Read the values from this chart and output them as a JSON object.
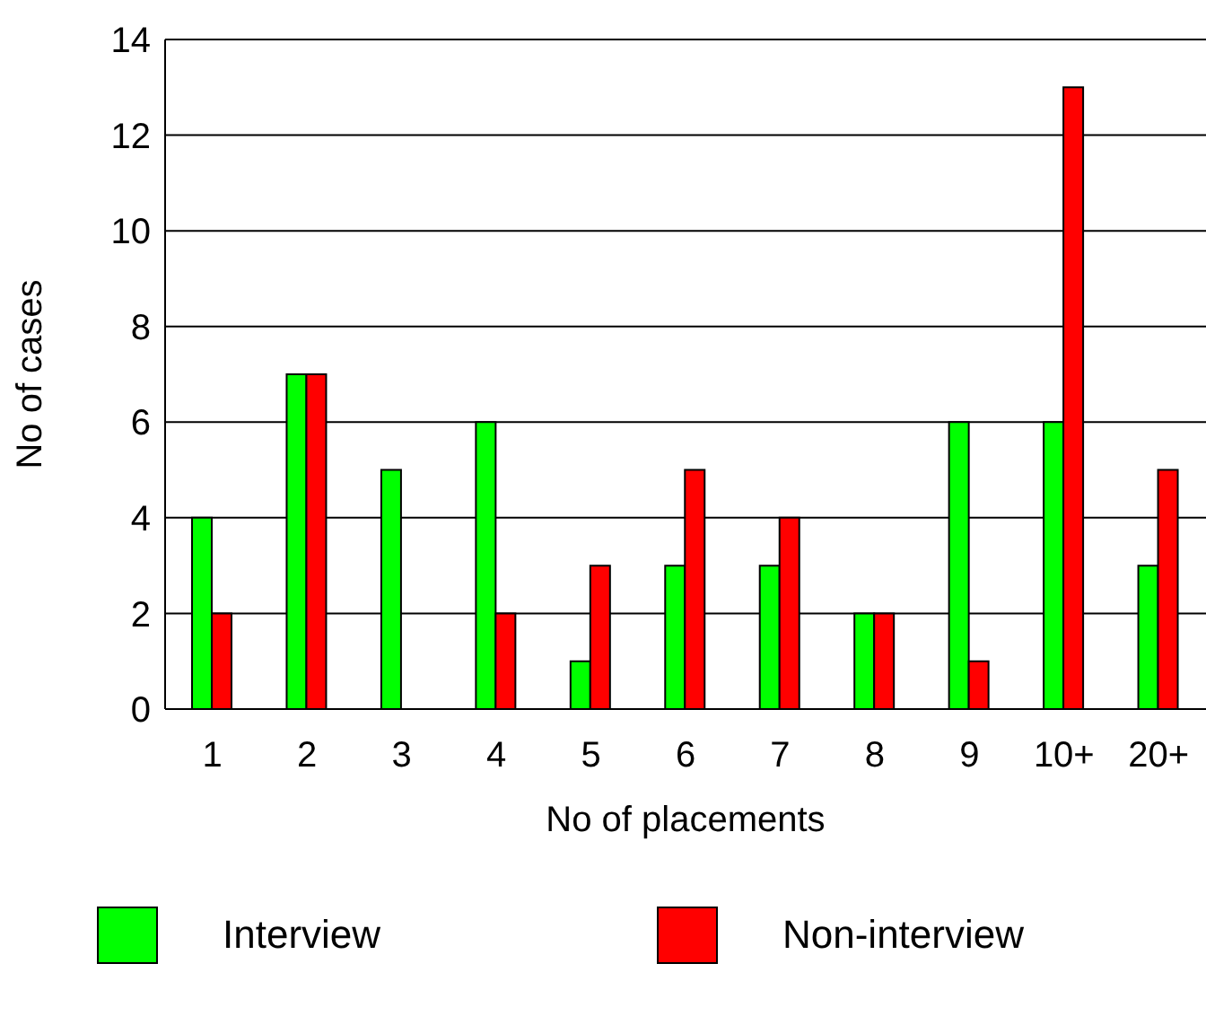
{
  "chart_data": {
    "type": "bar",
    "xlabel": "No of placements",
    "ylabel": "No of cases",
    "categories": [
      "1",
      "2",
      "3",
      "4",
      "5",
      "6",
      "7",
      "8",
      "9",
      "10+",
      "20+"
    ],
    "series": [
      {
        "name": "Interview",
        "color": "#00ff00",
        "values": [
          4,
          7,
          5,
          6,
          1,
          3,
          3,
          2,
          6,
          6,
          3
        ]
      },
      {
        "name": "Non-interview",
        "color": "#ff0000",
        "values": [
          2,
          7,
          0,
          2,
          3,
          5,
          4,
          2,
          1,
          13,
          5
        ]
      }
    ],
    "ylim": [
      0,
      14
    ],
    "yticks": [
      0,
      2,
      4,
      6,
      8,
      10,
      12,
      14
    ],
    "grid": "y",
    "legend": "bottom"
  }
}
